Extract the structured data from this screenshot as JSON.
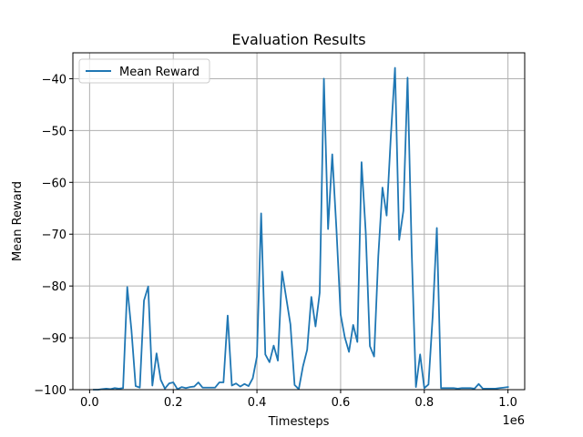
{
  "chart_data": {
    "type": "line",
    "title": "Evaluation Results",
    "xlabel": "Timesteps",
    "ylabel": "Mean Reward",
    "x_offset_label": "1e6",
    "xlim": [
      -0.04,
      1.04
    ],
    "ylim": [
      -100,
      -35
    ],
    "x_ticks": [
      0.0,
      0.2,
      0.4,
      0.6,
      0.8,
      1.0
    ],
    "x_tick_labels": [
      "0.0",
      "0.2",
      "0.4",
      "0.6",
      "0.8",
      "1.0"
    ],
    "y_ticks": [
      -100,
      -90,
      -80,
      -70,
      -60,
      -50,
      -40
    ],
    "y_tick_labels": [
      "−100",
      "−90",
      "−80",
      "−70",
      "−60",
      "−50",
      "−40"
    ],
    "grid": true,
    "legend_position": "upper-left",
    "line_color": "#1f77b4",
    "series": [
      {
        "name": "Mean Reward",
        "x": [
          0.01,
          0.02,
          0.03,
          0.04,
          0.05,
          0.06,
          0.07,
          0.08,
          0.09,
          0.1,
          0.11,
          0.12,
          0.13,
          0.14,
          0.15,
          0.16,
          0.17,
          0.18,
          0.19,
          0.2,
          0.21,
          0.22,
          0.23,
          0.24,
          0.25,
          0.26,
          0.27,
          0.28,
          0.29,
          0.3,
          0.31,
          0.32,
          0.33,
          0.34,
          0.35,
          0.36,
          0.37,
          0.38,
          0.39,
          0.4,
          0.41,
          0.42,
          0.43,
          0.44,
          0.45,
          0.46,
          0.47,
          0.48,
          0.49,
          0.5,
          0.51,
          0.52,
          0.53,
          0.54,
          0.55,
          0.56,
          0.57,
          0.58,
          0.59,
          0.6,
          0.61,
          0.62,
          0.63,
          0.64,
          0.65,
          0.66,
          0.67,
          0.68,
          0.69,
          0.7,
          0.71,
          0.72,
          0.73,
          0.74,
          0.75,
          0.76,
          0.77,
          0.78,
          0.79,
          0.8,
          0.81,
          0.82,
          0.83,
          0.84,
          0.85,
          0.86,
          0.87,
          0.88,
          0.89,
          0.9,
          0.91,
          0.92,
          0.93,
          0.94,
          0.95,
          0.96,
          0.97,
          0.98,
          0.99,
          1.0
        ],
        "values": [
          -100.0,
          -100.0,
          -99.9,
          -99.8,
          -99.9,
          -99.7,
          -99.8,
          -99.7,
          -80.2,
          -88.5,
          -99.3,
          -99.6,
          -82.8,
          -80.1,
          -99.2,
          -93.0,
          -98.1,
          -99.8,
          -98.8,
          -98.6,
          -99.9,
          -99.5,
          -99.7,
          -99.5,
          -99.4,
          -98.6,
          -99.6,
          -99.6,
          -99.6,
          -99.6,
          -98.6,
          -98.6,
          -85.7,
          -99.2,
          -98.8,
          -99.4,
          -98.9,
          -99.3,
          -97.8,
          -93.6,
          -66.0,
          -93.2,
          -94.7,
          -91.5,
          -94.4,
          -77.2,
          -82.3,
          -87.4,
          -99.1,
          -99.9,
          -95.5,
          -92.3,
          -82.1,
          -87.8,
          -81.3,
          -40.0,
          -69.0,
          -54.6,
          -69.0,
          -85.5,
          -89.9,
          -92.7,
          -87.5,
          -90.8,
          -56.1,
          -69.6,
          -91.6,
          -93.6,
          -74.3,
          -61.0,
          -66.4,
          -51.1,
          -37.9,
          -71.1,
          -65.5,
          -39.8,
          -73.6,
          -99.5,
          -93.2,
          -99.7,
          -99.0,
          -85.9,
          -68.8,
          -99.7,
          -99.7,
          -99.7,
          -99.7,
          -99.8,
          -99.7,
          -99.7,
          -99.7,
          -99.8,
          -98.9,
          -99.8,
          -99.8,
          -99.8,
          -99.8,
          -99.7,
          -99.6,
          -99.5
        ]
      }
    ]
  }
}
